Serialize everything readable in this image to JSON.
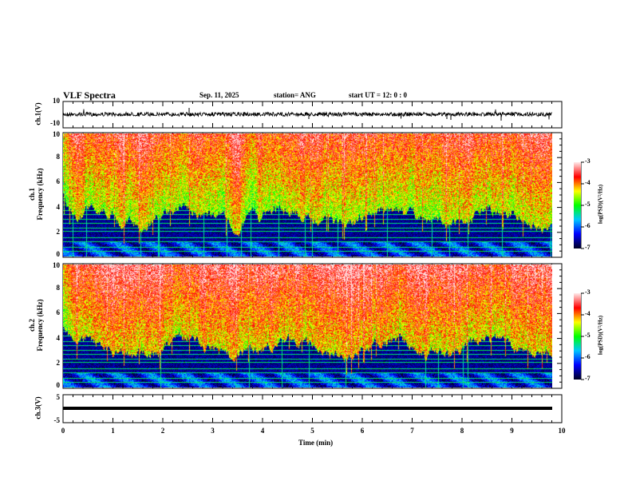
{
  "header": {
    "title": "VLF Spectra",
    "date": "Sep. 11, 2025",
    "station": "station= ANG",
    "start_ut": "start  UT =   12: 0  : 0"
  },
  "panels": {
    "ch1_wave": {
      "ylabel": "ch.1(V)",
      "ticks": [
        "10",
        "-10"
      ]
    },
    "ch1_spec": {
      "ylabel": "ch.1\nFrequency (kHz)",
      "ylabel_line1": "ch.1",
      "ylabel_line2": "Frequency (kHz)",
      "ticks": [
        "10",
        "8",
        "6",
        "4",
        "2",
        "0"
      ]
    },
    "ch2_spec": {
      "ylabel_line1": "ch.2",
      "ylabel_line2": "Frequency (kHz)",
      "ticks": [
        "10",
        "8",
        "6",
        "4",
        "2",
        "0"
      ]
    },
    "ch3_wave": {
      "ylabel": "ch.3(V)",
      "ticks": [
        "5",
        "-5"
      ]
    }
  },
  "colorbar": {
    "label": "log(PSD)(V²/Hz)",
    "ticks": [
      "-3",
      "-4",
      "-5",
      "-6",
      "-7"
    ]
  },
  "xaxis": {
    "label": "Time  (min)",
    "ticks": [
      "0",
      "1",
      "2",
      "3",
      "4",
      "5",
      "6",
      "7",
      "8",
      "9",
      "10"
    ]
  },
  "chart_data": {
    "type": "heatmap",
    "title": "VLF Spectra",
    "xlabel": "Time (min)",
    "xlim": [
      0,
      10
    ],
    "data_extent_min": [
      0,
      9.8
    ],
    "panels": [
      {
        "name": "ch.1(V)",
        "type": "line",
        "ylim": [
          -10,
          10
        ],
        "description_level": 0
      },
      {
        "name": "ch.1 Frequency (kHz)",
        "type": "heatmap",
        "ylim": [
          0,
          10
        ],
        "clim": [
          -7,
          -3
        ]
      },
      {
        "name": "ch.2 Frequency (kHz)",
        "type": "heatmap",
        "ylim": [
          0,
          10
        ],
        "clim": [
          -7,
          -3
        ]
      },
      {
        "name": "ch.3(V)",
        "type": "line",
        "ylim": [
          -5,
          5
        ],
        "constant_value": -1.6
      }
    ],
    "colormap": [
      "#000028",
      "#0000ff",
      "#00c8ff",
      "#00ff00",
      "#ffff00",
      "#ff0000",
      "#ffe6e6"
    ]
  }
}
